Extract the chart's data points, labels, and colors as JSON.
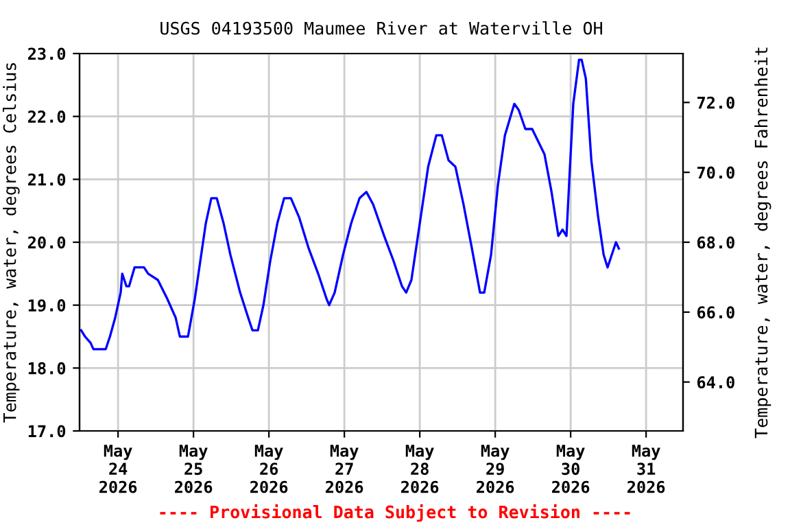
{
  "chart_data": {
    "type": "line",
    "title": "USGS 04193500 Maumee River at Waterville OH",
    "ylabel": "Temperature, water, degrees Celsius",
    "y2label": "Temperature, water, degrees Fahrenheit",
    "annotations": [
      "---- Provisional Data Subject to Revision ----"
    ],
    "x": [
      "2026-05-23T12:15",
      "2026-05-23T13:30",
      "2026-05-23T15:15",
      "2026-05-23T16:10",
      "2026-05-23T20:05",
      "2026-05-23T21:25",
      "2026-05-23T23:05",
      "2026-05-24T00:50",
      "2026-05-24T01:20",
      "2026-05-24T02:40",
      "2026-05-24T03:30",
      "2026-05-24T05:15",
      "2026-05-24T08:15",
      "2026-05-24T09:35",
      "2026-05-24T12:40",
      "2026-05-24T15:40",
      "2026-05-24T18:20",
      "2026-05-24T19:40",
      "2026-05-24T22:15",
      "2026-05-25T00:25",
      "2026-05-25T02:10",
      "2026-05-25T03:55",
      "2026-05-25T05:40",
      "2026-05-25T07:25",
      "2026-05-25T09:35",
      "2026-05-25T11:45",
      "2026-05-25T14:50",
      "2026-05-25T17:25",
      "2026-05-25T18:45",
      "2026-05-25T20:30",
      "2026-05-25T22:15",
      "2026-05-26T00:25",
      "2026-05-26T02:40",
      "2026-05-26T04:50",
      "2026-05-26T07:00",
      "2026-05-26T09:35",
      "2026-05-26T12:40",
      "2026-05-26T15:40",
      "2026-05-26T18:20",
      "2026-05-26T19:10",
      "2026-05-26T20:55",
      "2026-05-26T23:35",
      "2026-05-27T02:10",
      "2026-05-27T04:50",
      "2026-05-27T07:00",
      "2026-05-27T09:10",
      "2026-05-27T12:40",
      "2026-05-27T15:40",
      "2026-05-27T18:20",
      "2026-05-27T19:40",
      "2026-05-27T21:20",
      "2026-05-28T00:00",
      "2026-05-28T02:40",
      "2026-05-28T05:15",
      "2026-05-28T07:00",
      "2026-05-28T09:10",
      "2026-05-28T11:20",
      "2026-05-28T13:55",
      "2026-05-28T16:35",
      "2026-05-28T19:10",
      "2026-05-28T20:30",
      "2026-05-28T22:40",
      "2026-05-29T00:50",
      "2026-05-29T03:05",
      "2026-05-29T06:05",
      "2026-05-29T07:30",
      "2026-05-29T09:35",
      "2026-05-29T11:45",
      "2026-05-29T15:40",
      "2026-05-29T17:55",
      "2026-05-29T20:05",
      "2026-05-29T21:25",
      "2026-05-29T22:40",
      "2026-05-29T23:35",
      "2026-05-30T00:50",
      "2026-05-30T02:40",
      "2026-05-30T03:30",
      "2026-05-30T04:50",
      "2026-05-30T06:35",
      "2026-05-30T08:45",
      "2026-05-30T10:30",
      "2026-05-30T11:45",
      "2026-05-30T13:05",
      "2026-05-30T14:25",
      "2026-05-30T15:20"
    ],
    "series": [
      {
        "color": "#0000ff",
        "values": [
          18.6,
          18.5,
          18.4,
          18.3,
          18.3,
          18.5,
          18.8,
          19.2,
          19.5,
          19.3,
          19.3,
          19.6,
          19.6,
          19.5,
          19.4,
          19.1,
          18.8,
          18.5,
          18.5,
          19.1,
          19.7,
          20.3,
          20.7,
          20.7,
          20.3,
          19.8,
          19.2,
          18.8,
          18.6,
          18.6,
          19.0,
          19.7,
          20.3,
          20.7,
          20.7,
          20.4,
          19.9,
          19.5,
          19.1,
          19.0,
          19.2,
          19.8,
          20.3,
          20.7,
          20.8,
          20.6,
          20.1,
          19.7,
          19.3,
          19.2,
          19.4,
          20.3,
          21.2,
          21.7,
          21.7,
          21.3,
          21.2,
          20.6,
          19.9,
          19.2,
          19.2,
          19.8,
          20.9,
          21.7,
          22.2,
          22.1,
          21.8,
          21.8,
          21.4,
          20.8,
          20.1,
          20.2,
          20.1,
          21.0,
          22.2,
          22.9,
          22.9,
          22.6,
          21.3,
          20.4,
          19.8,
          19.6,
          19.8,
          20.0,
          19.9
        ]
      }
    ],
    "xlim": [
      "2026-05-23T11:45",
      "2026-05-31T11:45"
    ],
    "xticks": [
      {
        "value": "2026-05-24",
        "label": "May\n24\n2026"
      },
      {
        "value": "2026-05-25",
        "label": "May\n25\n2026"
      },
      {
        "value": "2026-05-26",
        "label": "May\n26\n2026"
      },
      {
        "value": "2026-05-27",
        "label": "May\n27\n2026"
      },
      {
        "value": "2026-05-28",
        "label": "May\n28\n2026"
      },
      {
        "value": "2026-05-29",
        "label": "May\n29\n2026"
      },
      {
        "value": "2026-05-30",
        "label": "May\n30\n2026"
      },
      {
        "value": "2026-05-31",
        "label": "May\n31\n2026"
      }
    ],
    "ylim": [
      17.0,
      23.0
    ],
    "yticks": [
      {
        "value": 17,
        "label": "17.0"
      },
      {
        "value": 18,
        "label": "18.0"
      },
      {
        "value": 19,
        "label": "19.0"
      },
      {
        "value": 20,
        "label": "20.0"
      },
      {
        "value": 21,
        "label": "21.0"
      },
      {
        "value": 22,
        "label": "22.0"
      },
      {
        "value": 23,
        "label": "23.0"
      }
    ],
    "y2lim": [
      62.6,
      73.4
    ],
    "y2ticks": [
      {
        "value": 64,
        "label": "64.0"
      },
      {
        "value": 66,
        "label": "66.0"
      },
      {
        "value": 68,
        "label": "68.0"
      },
      {
        "value": 70,
        "label": "70.0"
      },
      {
        "value": 72,
        "label": "72.0"
      }
    ],
    "grid": true,
    "marker": "none",
    "line_style": "solid"
  }
}
